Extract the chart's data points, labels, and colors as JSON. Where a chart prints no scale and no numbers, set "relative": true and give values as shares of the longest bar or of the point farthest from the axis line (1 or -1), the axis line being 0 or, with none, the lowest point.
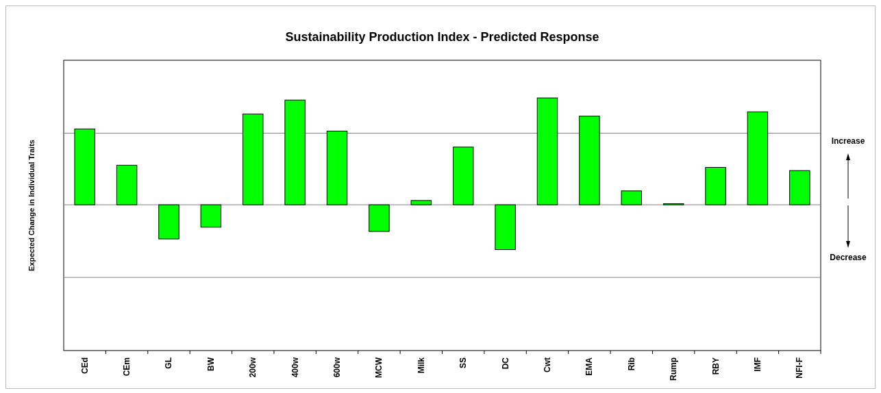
{
  "chart_data": {
    "type": "bar",
    "title": "Sustainability Production Index  - Predicted Response",
    "ylabel": "Expected Change in Individual Traits",
    "relative": true,
    "categories": [
      "CEd",
      "CEm",
      "GL",
      "BW",
      "200w",
      "400w",
      "600w",
      "MCW",
      "Milk",
      "SS",
      "DC",
      "Cwt",
      "EMA",
      "Rib",
      "Rump",
      "RBY",
      "IMF",
      "NFI-F"
    ],
    "values": [
      0.71,
      0.37,
      -0.32,
      -0.21,
      0.85,
      0.98,
      0.69,
      -0.25,
      0.04,
      0.54,
      -0.42,
      1,
      0.83,
      0.13,
      0.01,
      0.35,
      0.87,
      0.32
    ],
    "color": "#00ff00",
    "ref_lines": [
      {
        "axis": "y",
        "value": 0.67,
        "color": "#808080"
      },
      {
        "axis": "y",
        "value": -0.68,
        "color": "#808080"
      }
    ],
    "annotations": [
      "Increase",
      "Decrease"
    ]
  }
}
